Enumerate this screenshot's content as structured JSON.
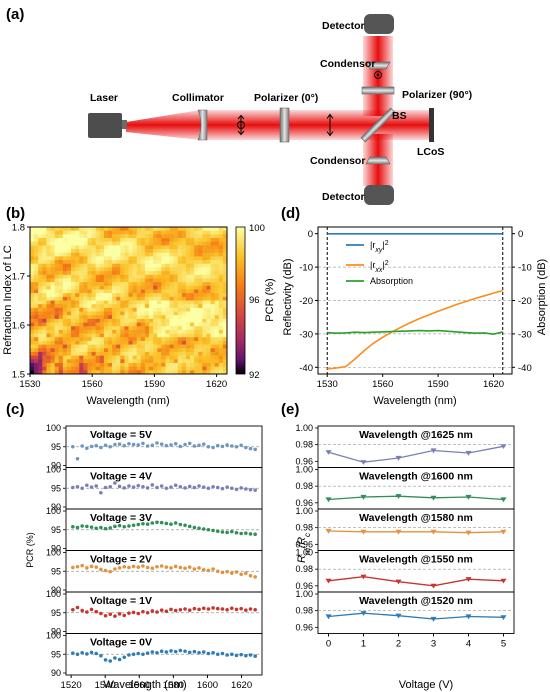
{
  "panels": {
    "a": "(a)",
    "b": "(b)",
    "c": "(c)",
    "d": "(d)",
    "e": "(e)"
  },
  "setup": {
    "laser": "Laser",
    "collimator": "Collimator",
    "polarizer0": "Polarizer (0°)",
    "polarizer90": "Polarizer (90°)",
    "bs": "BS",
    "lcos": "LCoS",
    "condensor_top": "Condensor",
    "condensor_bottom": "Condensor",
    "detector_top": "Detector",
    "detector_bottom": "Detector"
  },
  "panel_b": {
    "xlabel": "Wavelength (nm)",
    "ylabel": "Refraction Index of LC",
    "xticks": [
      "1530",
      "1560",
      "1590",
      "1620"
    ],
    "yticks": [
      "1.5",
      "1.6",
      "1.7",
      "1.8"
    ],
    "colorbar_label": "PCR (%)",
    "colorbar_ticks": [
      "100",
      "96",
      "92"
    ],
    "xlim": [
      1530,
      1625
    ],
    "ylim": [
      1.5,
      1.8
    ],
    "clim": [
      92,
      100
    ]
  },
  "panel_c": {
    "xlabel": "Wavelength (nm)",
    "ylabel": "PCR (%)",
    "xticks": [
      "1520",
      "1540",
      "1560",
      "1580",
      "1600",
      "1620"
    ],
    "yticks": [
      "90",
      "95",
      "100"
    ],
    "xlim": [
      1517,
      1632
    ],
    "ylim": [
      90,
      100
    ],
    "refline": 95,
    "rows": [
      {
        "label": "Voltage  =  5V",
        "color": "#6f97c0",
        "values": [
          95.0,
          91.8,
          95.2,
          94.6,
          95.1,
          95.3,
          94.8,
          95.4,
          95.0,
          95.6,
          95.7,
          95.3,
          95.8,
          95.6,
          95.5,
          95.9,
          95.2,
          95.4,
          96.0,
          95.7,
          95.3,
          95.5,
          95.8,
          95.1,
          95.6,
          95.9,
          95.2,
          95.4,
          95.7,
          95.0,
          94.8,
          95.3,
          95.1,
          95.5,
          95.2,
          95.0,
          95.4,
          94.8,
          94.5,
          94.3
        ]
      },
      {
        "label": "Voltage  = 4V",
        "color": "#7a7fb8",
        "values": [
          95.2,
          95.4,
          95.0,
          95.8,
          95.3,
          95.6,
          93.8,
          95.2,
          95.4,
          96.4,
          95.5,
          95.1,
          95.6,
          95.3,
          95.7,
          95.4,
          95.1,
          95.9,
          95.2,
          95.6,
          95.0,
          95.3,
          95.8,
          95.4,
          95.1,
          95.5,
          95.2,
          95.6,
          95.3,
          95.0,
          95.4,
          95.2,
          94.9,
          95.3,
          95.0,
          94.7,
          95.1,
          94.8,
          94.6,
          94.5
        ]
      },
      {
        "label": "Voltage  = 3V",
        "color": "#2f8f57",
        "values": [
          95.8,
          95.6,
          96.0,
          95.9,
          95.7,
          95.4,
          95.6,
          95.3,
          95.5,
          95.9,
          96.1,
          95.8,
          96.0,
          96.2,
          96.4,
          96.6,
          96.5,
          96.8,
          97.0,
          96.9,
          96.7,
          96.5,
          96.8,
          96.4,
          96.2,
          95.9,
          95.6,
          95.4,
          95.2,
          95.0,
          94.8,
          94.6,
          94.4,
          94.3,
          94.5,
          94.2,
          94.0,
          94.1,
          93.9,
          93.8
        ]
      },
      {
        "label": "Voltage  = 2V",
        "color": "#e4913b",
        "values": [
          96.0,
          96.2,
          96.5,
          95.9,
          96.3,
          96.1,
          95.5,
          95.2,
          94.9,
          95.6,
          95.9,
          96.2,
          96.0,
          96.3,
          96.1,
          96.4,
          96.0,
          95.8,
          96.2,
          96.4,
          96.1,
          95.9,
          96.3,
          96.0,
          95.8,
          96.1,
          95.6,
          95.9,
          95.4,
          95.2,
          95.6,
          95.0,
          94.7,
          94.9,
          94.5,
          94.8,
          94.2,
          94.5,
          93.8,
          93.5
        ]
      },
      {
        "label": "Voltage  = 1V",
        "color": "#c7362d",
        "values": [
          95.8,
          96.4,
          95.6,
          95.2,
          95.9,
          95.3,
          94.8,
          94.2,
          94.6,
          94.1,
          94.7,
          94.3,
          94.9,
          95.1,
          94.8,
          95.3,
          95.0,
          95.5,
          95.2,
          95.7,
          95.4,
          95.9,
          95.6,
          95.8,
          96.0,
          95.7,
          96.1,
          95.9,
          96.2,
          96.0,
          96.3,
          96.1,
          96.0,
          95.8,
          96.2,
          95.9,
          96.1,
          95.7,
          96.0,
          95.8
        ]
      },
      {
        "label": "Voltage  = 0V",
        "color": "#2e7cb8",
        "values": [
          95.3,
          95.0,
          95.4,
          95.1,
          95.5,
          95.2,
          94.6,
          93.5,
          93.2,
          94.0,
          93.6,
          94.2,
          94.8,
          95.0,
          95.2,
          95.0,
          95.3,
          95.6,
          95.4,
          95.8,
          95.6,
          95.9,
          95.7,
          96.0,
          95.8,
          95.5,
          95.7,
          95.4,
          95.6,
          95.2,
          95.4,
          95.0,
          95.2,
          94.8,
          95.0,
          94.7,
          94.9,
          94.6,
          94.8,
          94.5
        ]
      }
    ]
  },
  "panel_d": {
    "xlabel": "Wavelength (nm)",
    "ylabel_left": "Reflectivity (dB)",
    "ylabel_right": "Absorption (dB)",
    "xticks": [
      "1530",
      "1560",
      "1590",
      "1620"
    ],
    "yticks_left": [
      "0",
      "-10",
      "-20",
      "-30",
      "-40"
    ],
    "yticks_right": [
      "0",
      "-10",
      "-20",
      "-30",
      "-40"
    ],
    "xlim": [
      1525,
      1630
    ],
    "ylim": [
      -42,
      2
    ],
    "legend": {
      "rxy": "|r",
      "rxy_sub": "xy",
      "rxy_sup": "2",
      "rxx": "|r",
      "rxx_sub": "xx",
      "rxx_sup": "2",
      "abs": "Absorption"
    },
    "colors": {
      "rxy": "#2e7cb8",
      "rxx": "#ff8c1a",
      "abs": "#2ca02c"
    },
    "x": [
      1530,
      1535,
      1540,
      1545,
      1550,
      1555,
      1560,
      1565,
      1570,
      1575,
      1580,
      1585,
      1590,
      1595,
      1600,
      1605,
      1610,
      1615,
      1620,
      1625
    ],
    "rxx": [
      -40.5,
      -40.2,
      -39.8,
      -37.5,
      -35.0,
      -32.8,
      -31.0,
      -29.4,
      -28.0,
      -26.6,
      -25.4,
      -24.3,
      -23.2,
      -22.2,
      -21.2,
      -20.3,
      -19.4,
      -18.6,
      -17.8,
      -17.0
    ],
    "rxy": [
      -0.05,
      -0.05,
      -0.05,
      -0.05,
      -0.05,
      -0.05,
      -0.05,
      -0.05,
      -0.05,
      -0.05,
      -0.05,
      -0.05,
      -0.05,
      -0.05,
      -0.05,
      -0.05,
      -0.05,
      -0.05,
      -0.05,
      -0.05
    ],
    "absorption": [
      -29.6,
      -29.8,
      -29.7,
      -29.5,
      -29.6,
      -29.5,
      -29.4,
      -29.3,
      -29.2,
      -29.1,
      -29.0,
      -29.1,
      -29.0,
      -29.2,
      -29.4,
      -29.6,
      -29.8,
      -29.7,
      -30.1,
      -29.4
    ]
  },
  "panel_e": {
    "xlabel": "Voltage (V)",
    "ylabel": "R",
    "ylabel_sub1": "rn",
    "ylabel_mid": "/R",
    "ylabel_sub2": "c",
    "xticks": [
      "0",
      "1",
      "2",
      "3",
      "4",
      "5"
    ],
    "yticks": [
      "0.96",
      "0.98",
      "1.00"
    ],
    "xlim": [
      -0.3,
      5.3
    ],
    "ylim": [
      0.955,
      1.0
    ],
    "refline": 0.98,
    "voltages": [
      0,
      1,
      2,
      3,
      4,
      5
    ],
    "rows": [
      {
        "label": "Wavelength  @1625 nm",
        "color": "#7a7fb8",
        "values": [
          0.971,
          0.959,
          0.964,
          0.973,
          0.97,
          0.978
        ]
      },
      {
        "label": "Wavelength  @1600 nm",
        "color": "#2f8f57",
        "values": [
          0.964,
          0.967,
          0.968,
          0.966,
          0.967,
          0.964
        ]
      },
      {
        "label": "Wavelength  @1580 nm",
        "color": "#e4913b",
        "values": [
          0.976,
          0.975,
          0.975,
          0.975,
          0.974,
          0.975
        ]
      },
      {
        "label": "Wavelength  @1550 nm",
        "color": "#c7362d",
        "values": [
          0.966,
          0.971,
          0.965,
          0.96,
          0.968,
          0.966
        ]
      },
      {
        "label": "Wavelength  @1520 nm",
        "color": "#2e7cb8",
        "values": [
          0.973,
          0.977,
          0.974,
          0.97,
          0.973,
          0.972
        ]
      }
    ]
  },
  "colors": {
    "beam": "#e60000",
    "optic": "#9a9a9a",
    "device": "#555555"
  }
}
